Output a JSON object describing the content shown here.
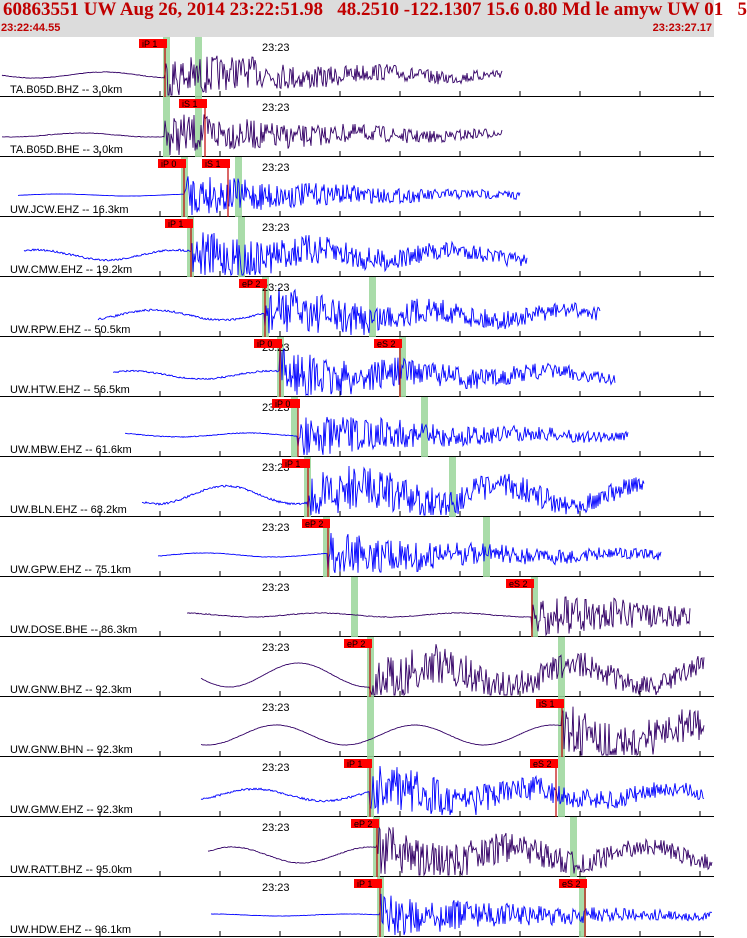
{
  "header": {
    "title": "60863551 UW Aug 26, 2014 23:22:51.98   48.2510 -122.1307 15.6 0.80 Md le amyw UW 01   5",
    "time_start": "23:22:44.55",
    "time_end": "23:23:27.17"
  },
  "colors": {
    "header_bg": "#dcdcdc",
    "header_text": "#c00000",
    "trace_blue": "#0000ff",
    "trace_navy": "#330066",
    "pick_box": "#ff0000",
    "pick_line": "#c00000",
    "theory_marker": "#9ad69a"
  },
  "time_label": "23:23",
  "traces": [
    {
      "label": "TA.B05D.BHZ -- 3.0km",
      "color": "navy",
      "start": 2,
      "end": 502,
      "amp": 3,
      "burst": 165,
      "picks": [
        {
          "label": "iP 1",
          "t": 165
        }
      ],
      "green": [
        166,
        198
      ],
      "noise": 0.3
    },
    {
      "label": "TA.B05D.BHE -- 3.0km",
      "color": "navy",
      "start": 2,
      "end": 502,
      "amp": 2,
      "burst": 165,
      "picks": [
        {
          "label": "iS 1",
          "t": 205
        }
      ],
      "green": [
        166,
        198
      ],
      "noise": 0.3
    },
    {
      "label": "UW.JCW.EHZ -- 16.3km",
      "color": "blue",
      "start": 18,
      "end": 520,
      "amp": 1,
      "burst": 185,
      "picks": [
        {
          "label": "iP 0",
          "t": 184
        },
        {
          "label": "iS 1",
          "t": 228
        }
      ],
      "green": [
        184,
        238
      ],
      "noise": 0.1
    },
    {
      "label": "UW.CMW.EHZ -- 19.2km",
      "color": "blue",
      "start": 24,
      "end": 527,
      "amp": 5,
      "burst": 192,
      "picks": [
        {
          "label": "iP 1",
          "t": 191
        }
      ],
      "green": [
        190,
        241
      ],
      "noise": 1
    },
    {
      "label": "UW.RPW.EHZ -- 50.5km",
      "color": "blue",
      "start": 98,
      "end": 600,
      "amp": 5,
      "burst": 265,
      "picks": [
        {
          "label": "eP 2",
          "t": 265
        }
      ],
      "green": [
        265,
        372
      ],
      "noise": 1
    },
    {
      "label": "UW.HTW.EHZ -- 56.5km",
      "color": "blue",
      "start": 113,
      "end": 615,
      "amp": 4,
      "burst": 280,
      "picks": [
        {
          "label": "iP 0",
          "t": 280
        },
        {
          "label": "eS 2",
          "t": 400
        }
      ],
      "green": [
        280,
        402
      ],
      "noise": 0.8
    },
    {
      "label": "UW.MBW.EHZ -- 61.6km",
      "color": "blue",
      "start": 125,
      "end": 628,
      "amp": 2,
      "burst": 298,
      "picks": [
        {
          "label": "iP 0",
          "t": 298
        }
      ],
      "green": [
        294,
        424
      ],
      "noise": 0.4
    },
    {
      "label": "UW.BLN.EHZ -- 68.2km",
      "color": "blue",
      "start": 142,
      "end": 644,
      "amp": 9,
      "burst": 308,
      "picks": [
        {
          "label": "iP 1",
          "t": 308
        }
      ],
      "green": [
        307,
        452
      ],
      "noise": 1
    },
    {
      "label": "UW.GPW.EHZ -- 75.1km",
      "color": "blue",
      "start": 158,
      "end": 661,
      "amp": 2,
      "burst": 328,
      "picks": [
        {
          "label": "eP 2",
          "t": 328
        }
      ],
      "green": [
        326,
        486
      ],
      "noise": 0.3
    },
    {
      "label": "UW.DOSE.BHE -- 86.3km",
      "color": "navy",
      "start": 187,
      "end": 690,
      "amp": 2,
      "burst": 532,
      "picks": [
        {
          "label": "eS 2",
          "t": 532
        }
      ],
      "green": [
        354,
        534
      ],
      "noise": 0.4
    },
    {
      "label": "UW.GNW.BHZ -- 92.3km",
      "color": "navy",
      "start": 201,
      "end": 704,
      "amp": 12,
      "burst": 370,
      "picks": [
        {
          "label": "eP 2",
          "t": 370
        }
      ],
      "green": [
        370,
        561
      ],
      "noise": 0.2
    },
    {
      "label": "UW.GNW.BHN -- 92.3km",
      "color": "navy",
      "start": 201,
      "end": 704,
      "amp": 10,
      "burst": 562,
      "picks": [
        {
          "label": "iS 1",
          "t": 562
        }
      ],
      "green": [
        370,
        561
      ],
      "noise": 0.2
    },
    {
      "label": "UW.GMW.EHZ -- 92.3km",
      "color": "blue",
      "start": 201,
      "end": 704,
      "amp": 6,
      "burst": 370,
      "picks": [
        {
          "label": "iP 1",
          "t": 370
        },
        {
          "label": "eS 2",
          "t": 556
        }
      ],
      "green": [
        370,
        561
      ],
      "noise": 1
    },
    {
      "label": "UW.RATT.BHZ -- 95.0km",
      "color": "navy",
      "start": 208,
      "end": 712,
      "amp": 8,
      "burst": 377,
      "picks": [
        {
          "label": "eP 2",
          "t": 377
        }
      ],
      "green": [
        376,
        573
      ],
      "noise": 0.4
    },
    {
      "label": "UW.HDW.EHZ -- 96.1km",
      "color": "blue",
      "start": 211,
      "end": 712,
      "amp": 1,
      "burst": 380,
      "picks": [
        {
          "label": "iP 1",
          "t": 380
        },
        {
          "label": "eS 2",
          "t": 585
        }
      ],
      "green": [
        380,
        582
      ],
      "noise": 0.2
    }
  ]
}
